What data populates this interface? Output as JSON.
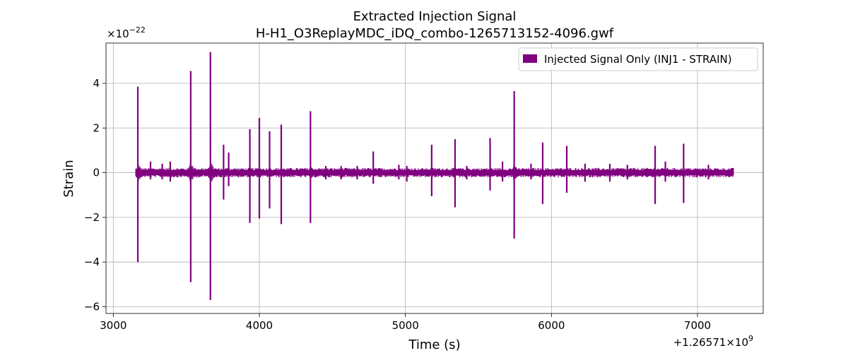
{
  "chart_data": {
    "type": "line",
    "title": "Extracted Injection Signal",
    "subtitle": "H-H1_O3ReplayMDC_iDQ_combo-1265713152-4096.gwf",
    "xlabel": "Time (s)",
    "ylabel": "Strain",
    "y_multiplier": "×10",
    "y_multiplier_exp": "−22",
    "x_offset_text": "+1.26571×10",
    "x_offset_exp": "9",
    "xlim": [
      2950,
      7450
    ],
    "ylim": [
      -6.3,
      5.8
    ],
    "x_ticks": [
      3000,
      4000,
      5000,
      6000,
      7000
    ],
    "x_tick_labels": [
      "3000",
      "4000",
      "5000",
      "6000",
      "7000"
    ],
    "y_ticks": [
      4,
      2,
      0,
      -2,
      -4,
      -6
    ],
    "y_tick_labels": [
      "4",
      "2",
      "0",
      "−2",
      "−4",
      "−6"
    ],
    "grid": true,
    "legend_position": "top-right",
    "series": [
      {
        "name": "Injected Signal Only (INJ1 - STRAIN)",
        "color": "#800080",
        "x_start": 3152,
        "x_end": 7248,
        "baseline_amplitude": 0.18,
        "bursts": [
          {
            "t": 3168,
            "max": 3.85,
            "min": -4.0
          },
          {
            "t": 3255,
            "max": 0.5,
            "min": -0.3
          },
          {
            "t": 3335,
            "max": 0.4,
            "min": -0.3
          },
          {
            "t": 3390,
            "max": 0.5,
            "min": -0.4
          },
          {
            "t": 3530,
            "max": 4.55,
            "min": -4.9
          },
          {
            "t": 3665,
            "max": 5.4,
            "min": -5.7
          },
          {
            "t": 3755,
            "max": 1.25,
            "min": -1.2
          },
          {
            "t": 3790,
            "max": 0.9,
            "min": -0.6
          },
          {
            "t": 3935,
            "max": 1.95,
            "min": -2.25
          },
          {
            "t": 4000,
            "max": 2.45,
            "min": -2.05
          },
          {
            "t": 4070,
            "max": 1.85,
            "min": -1.6
          },
          {
            "t": 4150,
            "max": 2.15,
            "min": -2.3
          },
          {
            "t": 4350,
            "max": 2.75,
            "min": -2.25
          },
          {
            "t": 4455,
            "max": 0.3,
            "min": -0.3
          },
          {
            "t": 4560,
            "max": 0.3,
            "min": -0.3
          },
          {
            "t": 4670,
            "max": 0.3,
            "min": -0.3
          },
          {
            "t": 4780,
            "max": 0.95,
            "min": -0.5
          },
          {
            "t": 4955,
            "max": 0.35,
            "min": -0.3
          },
          {
            "t": 5010,
            "max": 0.3,
            "min": -0.4
          },
          {
            "t": 5180,
            "max": 1.25,
            "min": -1.05
          },
          {
            "t": 5340,
            "max": 1.5,
            "min": -1.55
          },
          {
            "t": 5420,
            "max": 0.3,
            "min": -0.3
          },
          {
            "t": 5580,
            "max": 1.55,
            "min": -0.8
          },
          {
            "t": 5665,
            "max": 0.5,
            "min": -0.4
          },
          {
            "t": 5745,
            "max": 3.65,
            "min": -2.95
          },
          {
            "t": 5860,
            "max": 0.4,
            "min": -0.3
          },
          {
            "t": 5940,
            "max": 1.35,
            "min": -1.4
          },
          {
            "t": 6105,
            "max": 1.2,
            "min": -0.9
          },
          {
            "t": 6230,
            "max": 0.4,
            "min": -0.4
          },
          {
            "t": 6400,
            "max": 0.4,
            "min": -0.4
          },
          {
            "t": 6520,
            "max": 0.35,
            "min": -0.3
          },
          {
            "t": 6710,
            "max": 1.2,
            "min": -1.4
          },
          {
            "t": 6780,
            "max": 0.5,
            "min": -0.4
          },
          {
            "t": 6905,
            "max": 1.3,
            "min": -1.35
          },
          {
            "t": 7075,
            "max": 0.35,
            "min": -0.3
          }
        ]
      }
    ]
  }
}
